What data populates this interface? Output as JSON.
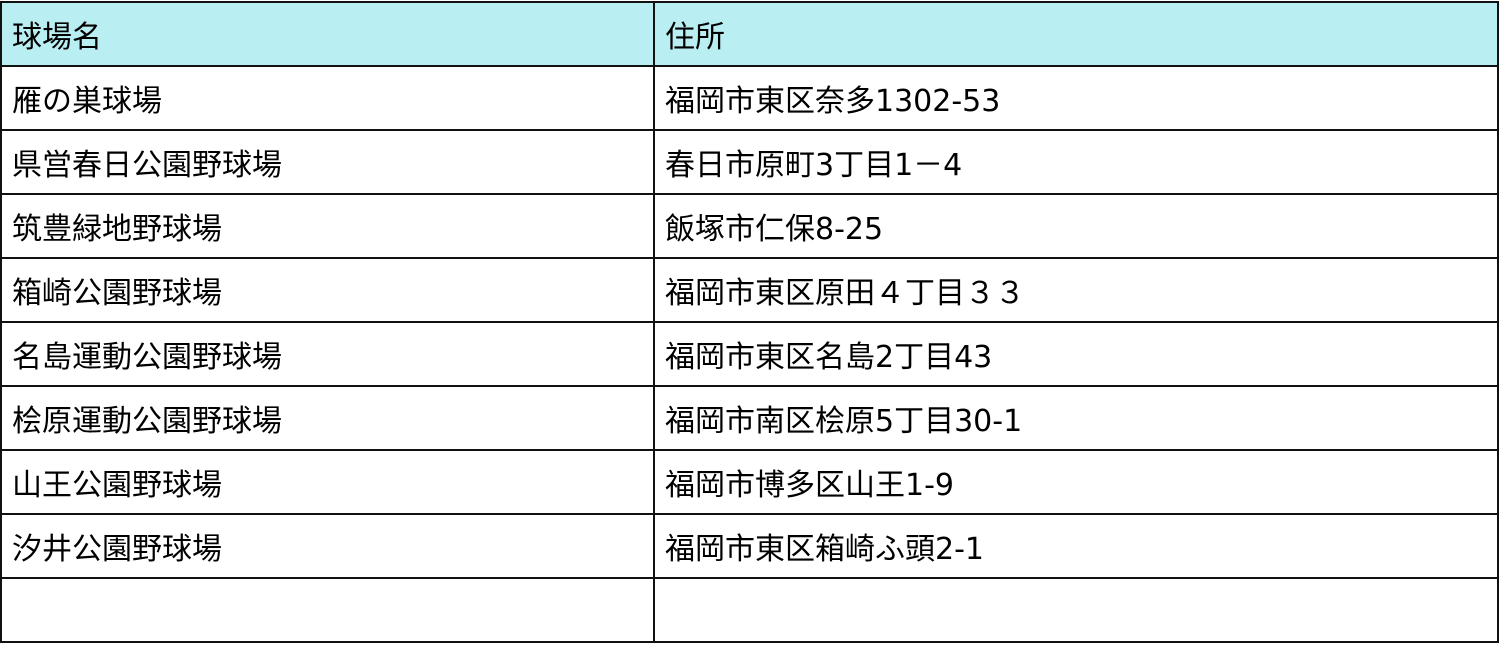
{
  "table": {
    "headers": [
      "球場名",
      "住所"
    ],
    "rows": [
      [
        "雁の巣球場",
        "福岡市東区奈多1302-53"
      ],
      [
        "県営春日公園野球場",
        "春日市原町3丁目1－4"
      ],
      [
        "筑豊緑地野球場",
        "飯塚市仁保8-25"
      ],
      [
        "箱崎公園野球場",
        "福岡市東区原田４丁目３３"
      ],
      [
        "名島運動公園野球場",
        "福岡市東区名島2丁目43"
      ],
      [
        "桧原運動公園野球場",
        "福岡市南区桧原5丁目30-1"
      ],
      [
        "山王公園野球場",
        "福岡市博多区山王1-9"
      ],
      [
        "汐井公園野球場",
        "福岡市東区箱崎ふ頭2-1"
      ],
      [
        "",
        ""
      ]
    ],
    "header_color": "#b9eef2"
  }
}
